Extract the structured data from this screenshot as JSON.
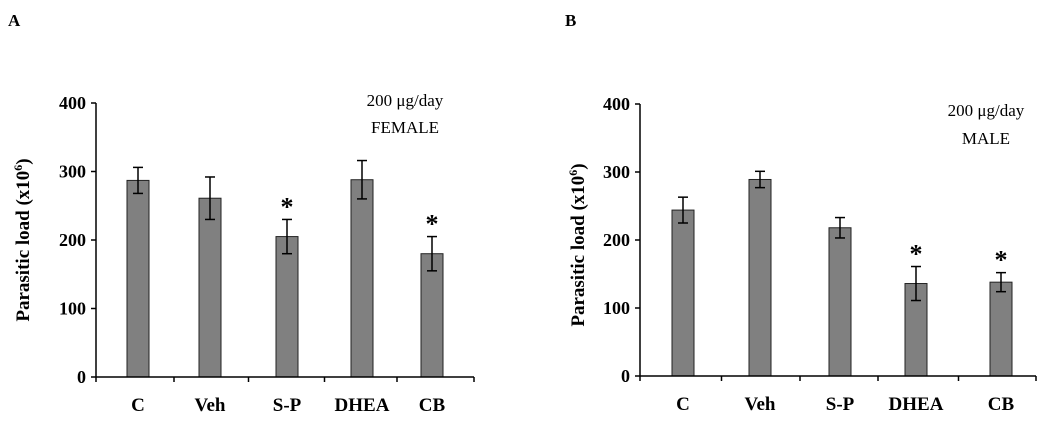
{
  "chart_data": [
    {
      "panel": "A",
      "type": "bar",
      "ylabel": "Parasitic load (x10",
      "ylabel_sup": "6",
      "ylabel_end": ")",
      "yticks": [
        "0",
        "100",
        "200",
        "300",
        "400"
      ],
      "ylim": [
        0,
        400
      ],
      "categories": [
        "C",
        "Veh",
        "S-P",
        "DHEA",
        "CB"
      ],
      "values": [
        287,
        261,
        205,
        288,
        180
      ],
      "errors": [
        19,
        31,
        25,
        28,
        25
      ],
      "significant": [
        false,
        false,
        true,
        false,
        true
      ],
      "star": "*",
      "dose": "200 μg/day",
      "group": "FEMALE",
      "bar_color": "#808080"
    },
    {
      "panel": "B",
      "type": "bar",
      "ylabel": "Parasitic load (x10",
      "ylabel_sup": "6",
      "ylabel_end": ")",
      "yticks": [
        "0",
        "100",
        "200",
        "300",
        "400"
      ],
      "ylim": [
        0,
        400
      ],
      "categories": [
        "C",
        "Veh",
        "S-P",
        "DHEA",
        "CB"
      ],
      "values": [
        244,
        289,
        218,
        136,
        138
      ],
      "errors": [
        19,
        12,
        15,
        25,
        14
      ],
      "significant": [
        false,
        false,
        false,
        true,
        true
      ],
      "star": "*",
      "dose": "200 μg/day",
      "group": "MALE",
      "bar_color": "#808080"
    }
  ]
}
